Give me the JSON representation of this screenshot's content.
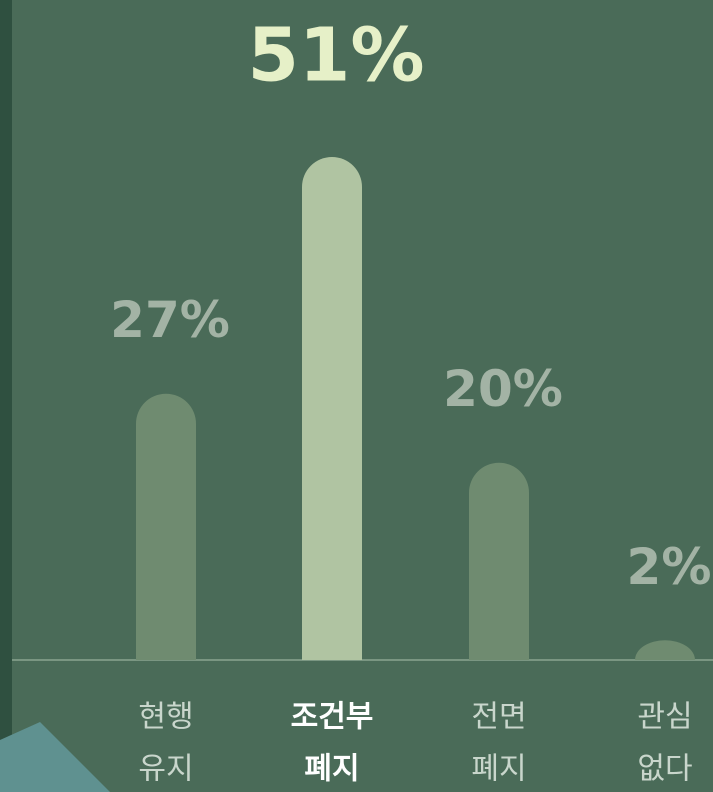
{
  "chart_data": {
    "type": "bar",
    "categories": [
      [
        "현행",
        "유지"
      ],
      [
        "조건부",
        "폐지"
      ],
      [
        "전면",
        "폐지"
      ],
      [
        "관심",
        "없다"
      ]
    ],
    "values": [
      27,
      51,
      20,
      2
    ],
    "value_labels": [
      "27%",
      "51%",
      "20%",
      "2%"
    ],
    "color": "#6f8b70",
    "highlight": 1,
    "highlight_color": "#b0c4a2"
  }
}
